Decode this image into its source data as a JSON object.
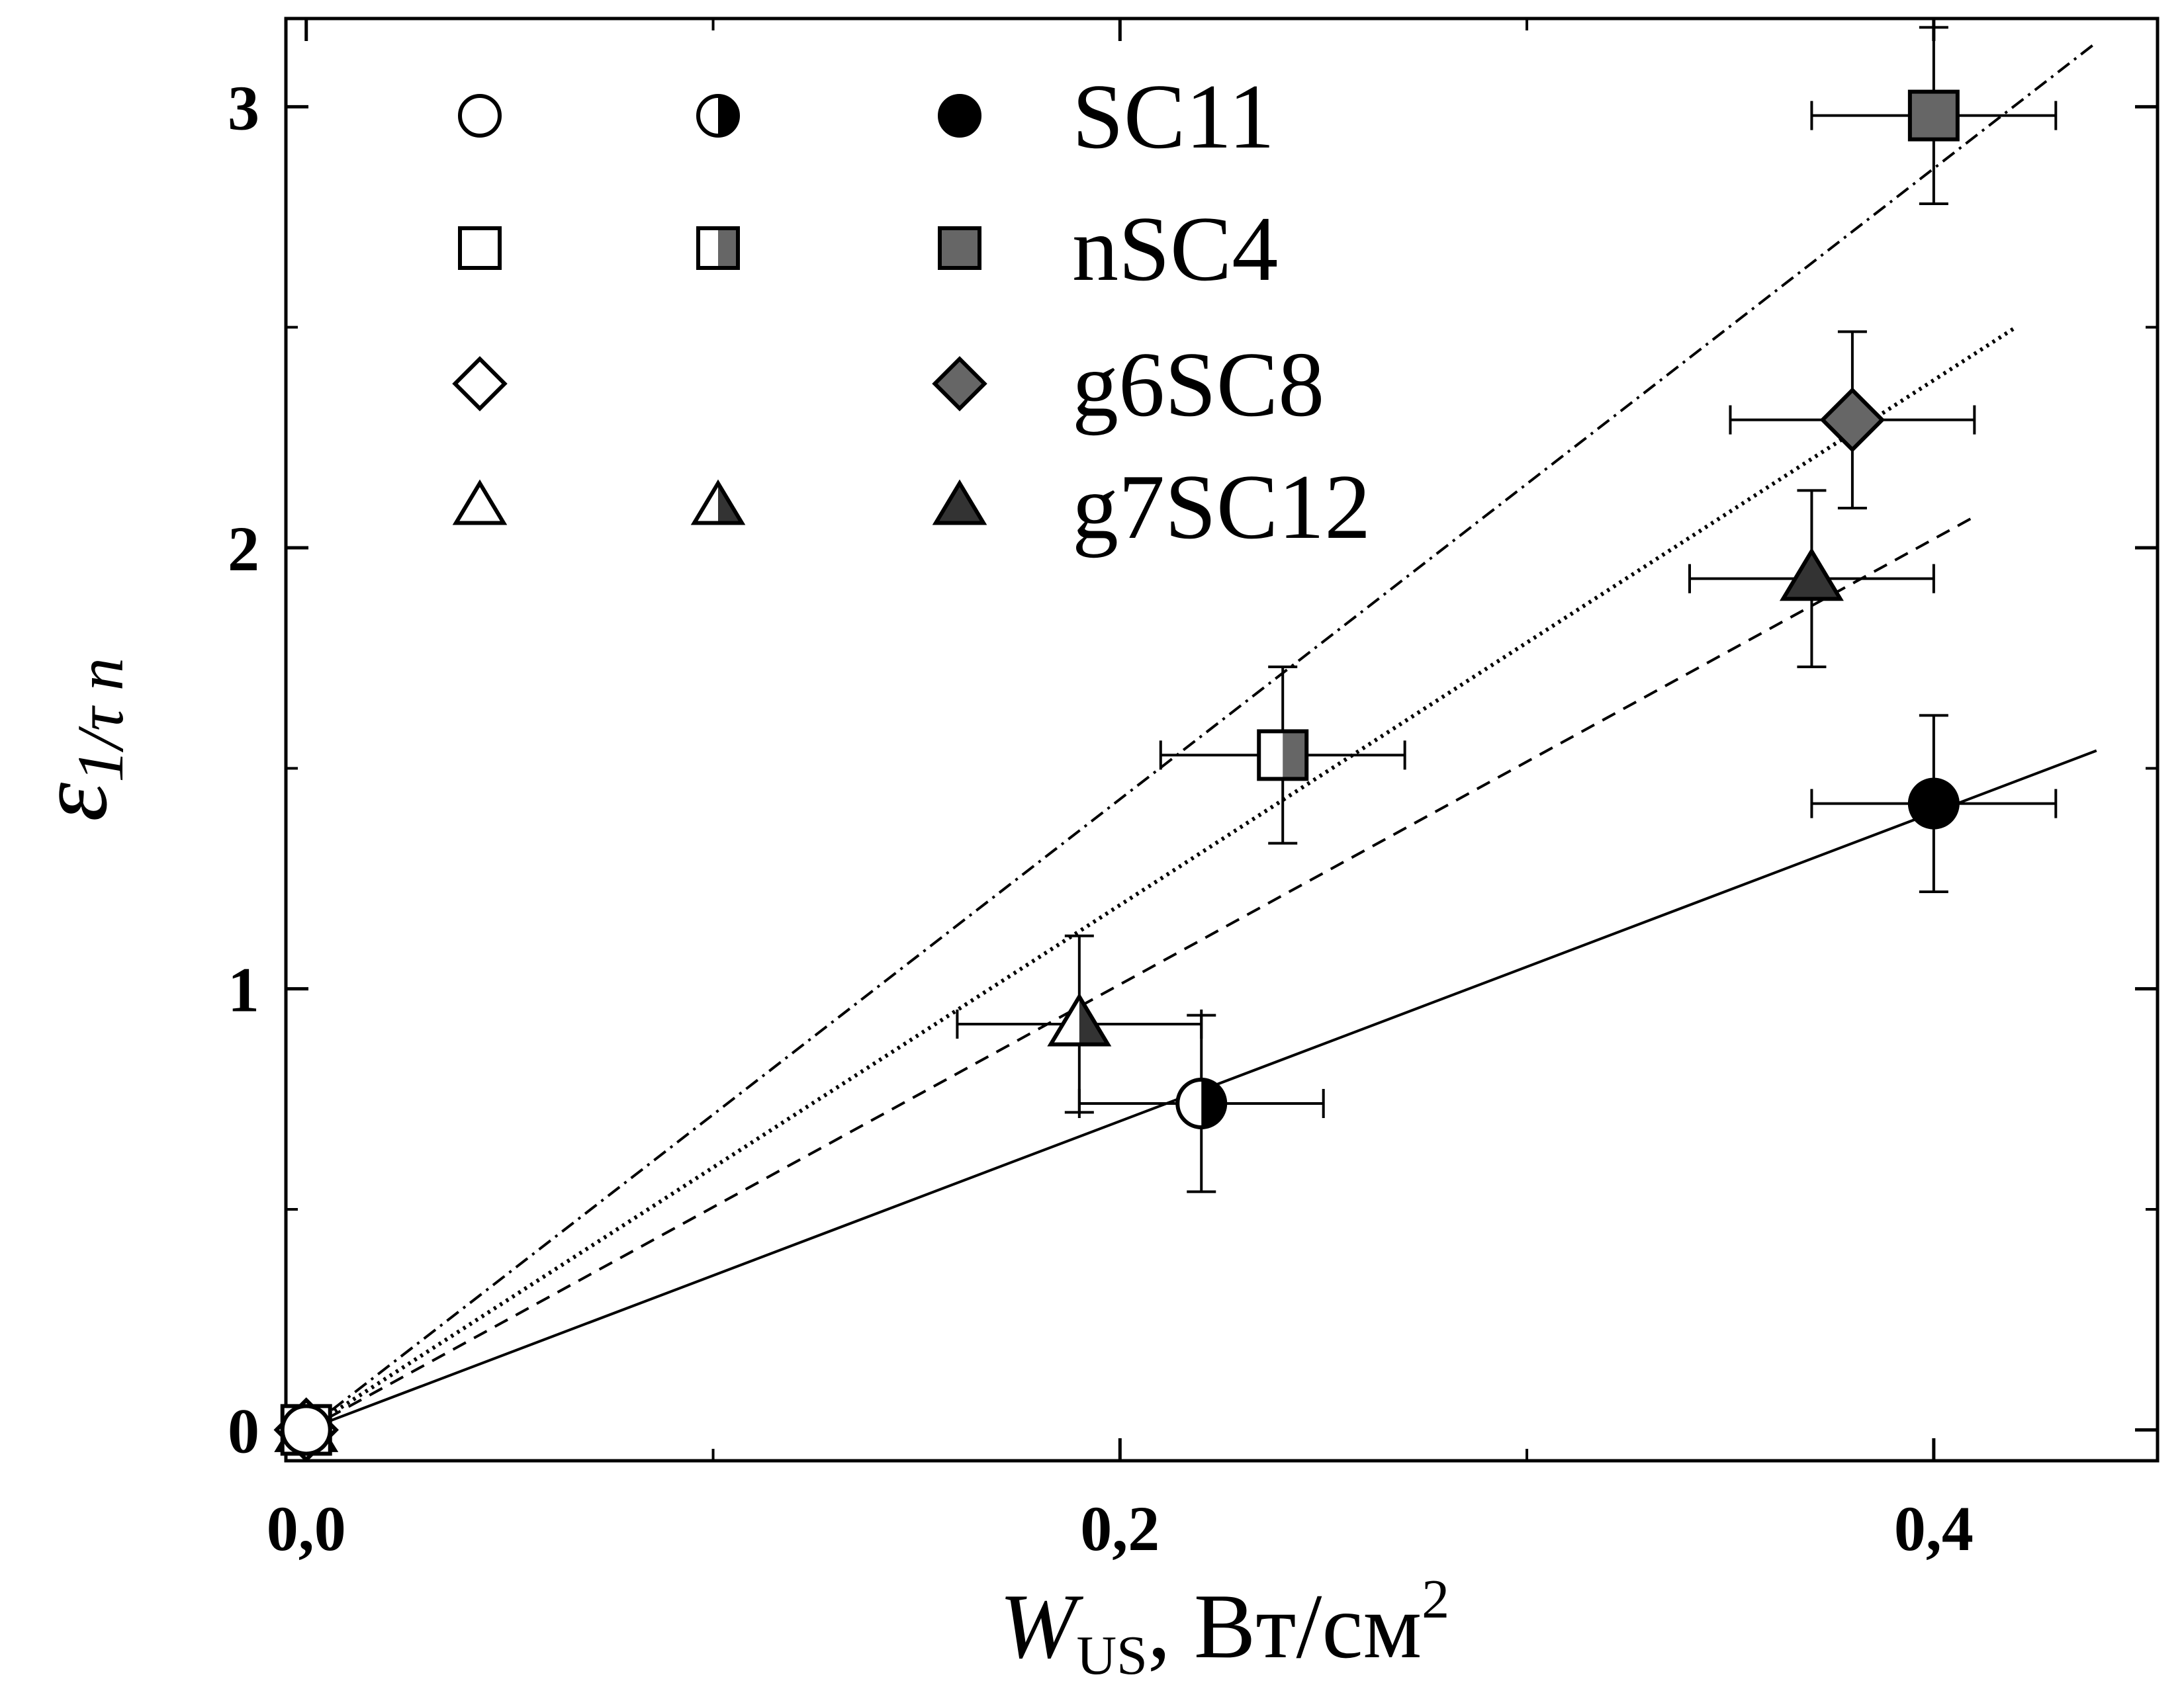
{
  "chart_data": {
    "type": "scatter",
    "title": "",
    "xlabel": {
      "main": "W",
      "sub": "US",
      "unit": ", Вт/см",
      "unit_sup": "2"
    },
    "ylabel": {
      "main": "ε",
      "sub": "1/τ n"
    },
    "xlim": [
      -0.005,
      0.455
    ],
    "ylim": [
      -0.07,
      3.2
    ],
    "x_ticks": [
      {
        "value": 0.0,
        "label": "0,0"
      },
      {
        "value": 0.2,
        "label": "0,2"
      },
      {
        "value": 0.4,
        "label": "0,4"
      }
    ],
    "x_minor_ticks": [
      0.1,
      0.3
    ],
    "y_ticks": [
      {
        "value": 0,
        "label": "0"
      },
      {
        "value": 1,
        "label": "1"
      },
      {
        "value": 2,
        "label": "2"
      },
      {
        "value": 3,
        "label": "3"
      }
    ],
    "y_minor_ticks": [
      0.5,
      1.5,
      2.5
    ],
    "grid": false,
    "legend_position": "top-left",
    "series": [
      {
        "name": "SC11",
        "marker": "circle",
        "color": "#000000",
        "fit_line": {
          "style": "solid",
          "slope": 3.5,
          "x_range": [
            -0.005,
            0.44
          ]
        },
        "points": [
          {
            "x": 0.0,
            "y": 0.0,
            "fill": "open"
          },
          {
            "x": 0.22,
            "y": 0.74,
            "fill": "half",
            "xerr": 0.03,
            "yerr": 0.2
          },
          {
            "x": 0.4,
            "y": 1.42,
            "fill": "full",
            "xerr": 0.03,
            "yerr": 0.2
          }
        ]
      },
      {
        "name": "nSC4",
        "marker": "square",
        "color": "#666666",
        "fit_line": {
          "style": "dashdot",
          "slope": 7.15,
          "x_range": [
            -0.005,
            0.44
          ]
        },
        "points": [
          {
            "x": 0.0,
            "y": 0.0,
            "fill": "open"
          },
          {
            "x": 0.24,
            "y": 1.53,
            "fill": "half",
            "xerr": 0.03,
            "yerr": 0.2
          },
          {
            "x": 0.4,
            "y": 2.98,
            "fill": "full",
            "xerr": 0.03,
            "yerr": 0.2
          }
        ]
      },
      {
        "name": "g6SC8",
        "marker": "diamond",
        "color": "#666666",
        "fit_line": {
          "style": "dotted",
          "slope": 5.95,
          "x_range": [
            -0.005,
            0.42
          ]
        },
        "points": [
          {
            "x": 0.0,
            "y": 0.0,
            "fill": "open"
          },
          {
            "x": 0.38,
            "y": 2.29,
            "fill": "full",
            "xerr": 0.03,
            "yerr": 0.2
          }
        ]
      },
      {
        "name": "g7SC12",
        "marker": "triangle",
        "color": "#333333",
        "fit_line": {
          "style": "dashed",
          "slope": 5.05,
          "x_range": [
            -0.005,
            0.41
          ]
        },
        "points": [
          {
            "x": 0.0,
            "y": 0.0,
            "fill": "open"
          },
          {
            "x": 0.19,
            "y": 0.92,
            "fill": "half",
            "xerr": 0.03,
            "yerr": 0.2
          },
          {
            "x": 0.37,
            "y": 1.93,
            "fill": "full",
            "xerr": 0.03,
            "yerr": 0.2
          }
        ]
      }
    ],
    "legend": [
      {
        "label": "SC11",
        "marker": "circle",
        "fills": [
          "open",
          "half",
          "full"
        ]
      },
      {
        "label": "nSC4",
        "marker": "square",
        "fills": [
          "open",
          "half",
          "full"
        ]
      },
      {
        "label": "g6SC8",
        "marker": "diamond",
        "fills": [
          "open",
          null,
          "full"
        ]
      },
      {
        "label": "g7SC12",
        "marker": "triangle",
        "fills": [
          "open",
          "half",
          "full"
        ]
      }
    ]
  }
}
